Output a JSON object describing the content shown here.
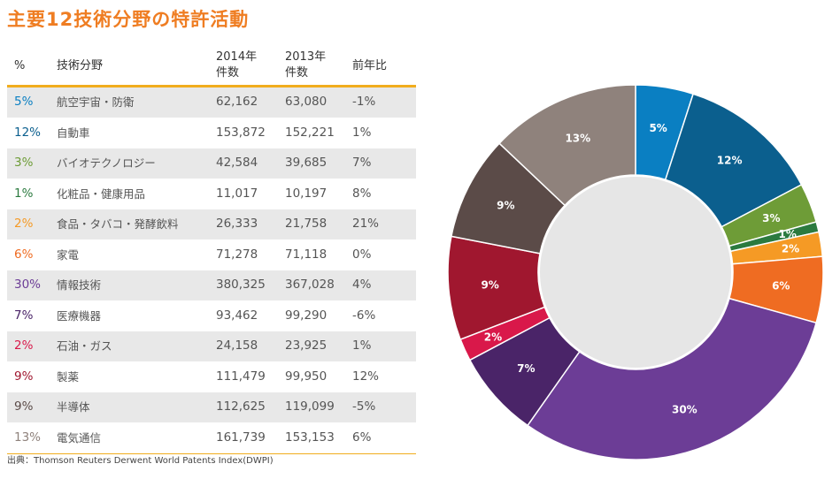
{
  "title": "主要12技術分野の特許活動",
  "table": {
    "headers": {
      "pct": "%",
      "field": "技術分野",
      "y2014": "2014年\n件数",
      "y2013": "2013年\n件数",
      "change": "前年比"
    },
    "rows": [
      {
        "pct": "5%",
        "field": "航空宇宙・防衛",
        "y2014": "62,162",
        "y2013": "63,080",
        "change": "-1%"
      },
      {
        "pct": "12%",
        "field": "自動車",
        "y2014": "153,872",
        "y2013": "152,221",
        "change": "1%"
      },
      {
        "pct": "3%",
        "field": "バイオテクノロジー",
        "y2014": "42,584",
        "y2013": "39,685",
        "change": "7%"
      },
      {
        "pct": "1%",
        "field": "化粧品・健康用品",
        "y2014": "11,017",
        "y2013": "10,197",
        "change": "8%"
      },
      {
        "pct": "2%",
        "field": "食品・タバコ・発酵飲料",
        "y2014": "26,333",
        "y2013": "21,758",
        "change": "21%"
      },
      {
        "pct": "6%",
        "field": "家電",
        "y2014": "71,278",
        "y2013": "71,118",
        "change": "0%"
      },
      {
        "pct": "30%",
        "field": "情報技術",
        "y2014": "380,325",
        "y2013": "367,028",
        "change": "4%"
      },
      {
        "pct": "7%",
        "field": "医療機器",
        "y2014": "93,462",
        "y2013": "99,290",
        "change": "-6%"
      },
      {
        "pct": "2%",
        "field": "石油・ガス",
        "y2014": "24,158",
        "y2013": "23,925",
        "change": "1%"
      },
      {
        "pct": "9%",
        "field": "製薬",
        "y2014": "111,479",
        "y2013": "99,950",
        "change": "12%"
      },
      {
        "pct": "9%",
        "field": "半導体",
        "y2014": "112,625",
        "y2013": "119,099",
        "change": "-5%"
      },
      {
        "pct": "13%",
        "field": "電気通信",
        "y2014": "161,739",
        "y2013": "153,153",
        "change": "6%"
      }
    ]
  },
  "source": "出典：Thomson Reuters Derwent World Patents Index(DWPI)",
  "chart_data": {
    "type": "pie",
    "subtype": "donut",
    "categories": [
      "航空宇宙・防衛",
      "自動車",
      "バイオテクノロジー",
      "化粧品・健康用品",
      "食品・タバコ・発酵飲料",
      "家電",
      "情報技術",
      "医療機器",
      "石油・ガス",
      "製薬",
      "半導体",
      "電気通信"
    ],
    "values": [
      62162,
      153872,
      42584,
      11017,
      26333,
      71278,
      380325,
      93462,
      24158,
      111479,
      112625,
      161739
    ],
    "labels": [
      "5%",
      "12%",
      "3%",
      "1%",
      "2%",
      "6%",
      "30%",
      "7%",
      "2%",
      "9%",
      "9%",
      "13%"
    ],
    "colors": [
      "#0a7fc2",
      "#0b5f8e",
      "#6e9c37",
      "#2b7a3f",
      "#f59a25",
      "#ef6c22",
      "#6c3d96",
      "#4a2468",
      "#d9184a",
      "#a0172f",
      "#5b4b48",
      "#8f827c"
    ],
    "start_angle_deg": 0,
    "direction": "clockwise"
  }
}
